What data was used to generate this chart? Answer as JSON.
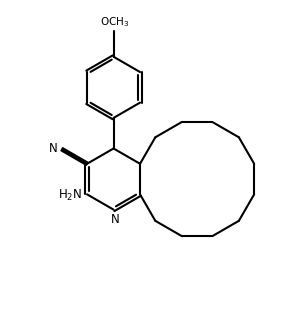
{
  "bg_color": "#ffffff",
  "line_color": "#000000",
  "lw": 1.5,
  "fig_width": 2.89,
  "fig_height": 3.29,
  "dpi": 100
}
